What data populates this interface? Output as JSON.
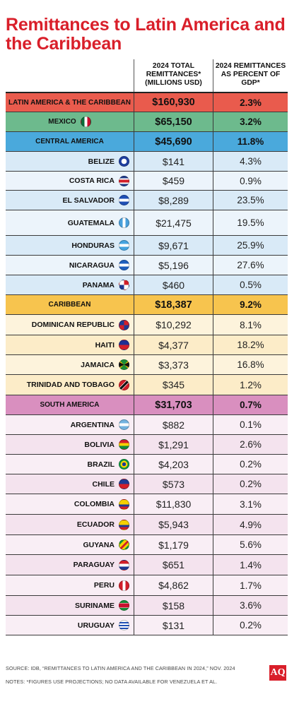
{
  "title": "Remittances to Latin America and the Caribbean",
  "columns": {
    "total": "2024 TOTAL REMITTANCES* (MILLIONS USD)",
    "gdp": "2024 REMITTANCES AS PERCENT OF GDP*"
  },
  "colors": {
    "brand_red": "#d91f2a",
    "latam": "#e95b4d",
    "mexico": "#6dba8d",
    "central_america": "#4aa9dc",
    "central_america_light": "#d9eaf7",
    "caribbean": "#f7c44e",
    "caribbean_light": "#fcecc8",
    "south_america": "#d98fbf",
    "south_america_light": "#f4e3ee"
  },
  "rows": [
    {
      "name": "LATIN AMERICA & THE CARIBBEAN",
      "total": "$160,930",
      "gdp": "2.3%",
      "kind": "region",
      "bg": "#e95b4d",
      "flag": ""
    },
    {
      "name": "MEXICO",
      "total": "$65,150",
      "gdp": "3.2%",
      "kind": "region-flag",
      "bg": "#6dba8d",
      "flag": "mexico-flag-icon"
    },
    {
      "name": "CENTRAL AMERICA",
      "total": "$45,690",
      "gdp": "11.8%",
      "kind": "region",
      "bg": "#4aa9dc",
      "flag": ""
    },
    {
      "name": "BELIZE",
      "total": "$141",
      "gdp": "4.3%",
      "kind": "country",
      "bg": "#d9eaf7",
      "flag": "belize-flag-icon"
    },
    {
      "name": "COSTA RICA",
      "total": "$459",
      "gdp": "0.9%",
      "kind": "country",
      "bg": "#ecf4fb",
      "flag": "costa-rica-flag-icon"
    },
    {
      "name": "EL SALVADOR",
      "total": "$8,289",
      "gdp": "23.5%",
      "kind": "country",
      "bg": "#d9eaf7",
      "flag": "el-salvador-flag-icon"
    },
    {
      "name": "GUATEMALA",
      "total": "$21,475",
      "gdp": "19.5%",
      "kind": "country",
      "bg": "#ecf4fb",
      "flag": "guatemala-flag-icon"
    },
    {
      "name": "HONDURAS",
      "total": "$9,671",
      "gdp": "25.9%",
      "kind": "country",
      "bg": "#d9eaf7",
      "flag": "honduras-flag-icon"
    },
    {
      "name": "NICARAGUA",
      "total": "$5,196",
      "gdp": "27.6%",
      "kind": "country",
      "bg": "#ecf4fb",
      "flag": "nicaragua-flag-icon"
    },
    {
      "name": "PANAMA",
      "total": "$460",
      "gdp": "0.5%",
      "kind": "country",
      "bg": "#d9eaf7",
      "flag": "panama-flag-icon"
    },
    {
      "name": "CARIBBEAN",
      "total": "$18,387",
      "gdp": "9.2%",
      "kind": "region",
      "bg": "#f7c44e",
      "flag": ""
    },
    {
      "name": "DOMINICAN REPUBLIC",
      "total": "$10,292",
      "gdp": "8.1%",
      "kind": "country",
      "bg": "#fdf3dc",
      "flag": "dominican-republic-flag-icon"
    },
    {
      "name": "HAITI",
      "total": "$4,377",
      "gdp": "18.2%",
      "kind": "country",
      "bg": "#fcecc8",
      "flag": "haiti-flag-icon"
    },
    {
      "name": "JAMAICA",
      "total": "$3,373",
      "gdp": "16.8%",
      "kind": "country",
      "bg": "#fdf3dc",
      "flag": "jamaica-flag-icon"
    },
    {
      "name": "TRINIDAD AND TOBAGO",
      "total": "$345",
      "gdp": "1.2%",
      "kind": "country",
      "bg": "#fcecc8",
      "flag": "trinidad-and-tobago-flag-icon"
    },
    {
      "name": "SOUTH AMERICA",
      "total": "$31,703",
      "gdp": "0.7%",
      "kind": "region",
      "bg": "#d98fbf",
      "flag": ""
    },
    {
      "name": "ARGENTINA",
      "total": "$882",
      "gdp": "0.1%",
      "kind": "country",
      "bg": "#f9eef5",
      "flag": "argentina-flag-icon"
    },
    {
      "name": "BOLIVIA",
      "total": "$1,291",
      "gdp": "2.6%",
      "kind": "country",
      "bg": "#f4e3ee",
      "flag": "bolivia-flag-icon"
    },
    {
      "name": "BRAZIL",
      "total": "$4,203",
      "gdp": "0.2%",
      "kind": "country",
      "bg": "#f9eef5",
      "flag": "brazil-flag-icon"
    },
    {
      "name": "CHILE",
      "total": "$573",
      "gdp": "0.2%",
      "kind": "country",
      "bg": "#f4e3ee",
      "flag": "chile-flag-icon"
    },
    {
      "name": "COLOMBIA",
      "total": "$11,830",
      "gdp": "3.1%",
      "kind": "country",
      "bg": "#f9eef5",
      "flag": "colombia-flag-icon"
    },
    {
      "name": "ECUADOR",
      "total": "$5,943",
      "gdp": "4.9%",
      "kind": "country",
      "bg": "#f4e3ee",
      "flag": "ecuador-flag-icon"
    },
    {
      "name": "GUYANA",
      "total": "$1,179",
      "gdp": "5.6%",
      "kind": "country",
      "bg": "#f9eef5",
      "flag": "guyana-flag-icon"
    },
    {
      "name": "PARAGUAY",
      "total": "$651",
      "gdp": "1.4%",
      "kind": "country",
      "bg": "#f4e3ee",
      "flag": "paraguay-flag-icon"
    },
    {
      "name": "PERU",
      "total": "$4,862",
      "gdp": "1.7%",
      "kind": "country",
      "bg": "#f9eef5",
      "flag": "peru-flag-icon"
    },
    {
      "name": "SURINAME",
      "total": "$158",
      "gdp": "3.6%",
      "kind": "country",
      "bg": "#f4e3ee",
      "flag": "suriname-flag-icon"
    },
    {
      "name": "URUGUAY",
      "total": "$131",
      "gdp": "0.2%",
      "kind": "country",
      "bg": "#f9eef5",
      "flag": "uruguay-flag-icon"
    }
  ],
  "footer": {
    "source": "SOURCE: IDB, “REMITTANCES TO LATIN AMERICA AND THE CARIBBEAN IN 2024,” NOV. 2024",
    "notes": "NOTES: *FIGURES USE PROJECTIONS; NO DATA AVAILABLE FOR VENEZUELA ET AL."
  },
  "logo": "AQ"
}
